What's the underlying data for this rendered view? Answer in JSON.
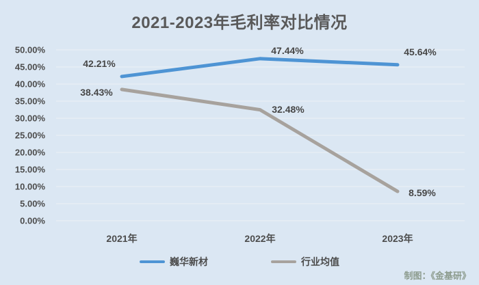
{
  "credit": "制图：《金基研》",
  "chart_data": {
    "type": "line",
    "title": "2021-2023年毛利率对比情况",
    "categories": [
      "2021年",
      "2022年",
      "2023年"
    ],
    "series": [
      {
        "name": "巍华新材",
        "values": [
          42.21,
          47.44,
          45.64
        ],
        "labels": [
          "42.21%",
          "47.44%",
          "45.64%"
        ],
        "color": "#4e94d4"
      },
      {
        "name": "行业均值",
        "values": [
          38.43,
          32.48,
          8.59
        ],
        "labels": [
          "38.43%",
          "32.48%",
          "8.59%"
        ],
        "color": "#a7a29d"
      }
    ],
    "y_ticks": [
      "0.00%",
      "5.00%",
      "10.00%",
      "15.00%",
      "20.00%",
      "25.00%",
      "30.00%",
      "35.00%",
      "40.00%",
      "45.00%",
      "50.00%"
    ],
    "ylim": [
      0,
      50
    ],
    "y_step": 5,
    "grid": true,
    "legend_position": "bottom",
    "background_color": "#dbe7f3",
    "gridline_color": "#e9eef5",
    "text_color": "#4c4c4c"
  }
}
